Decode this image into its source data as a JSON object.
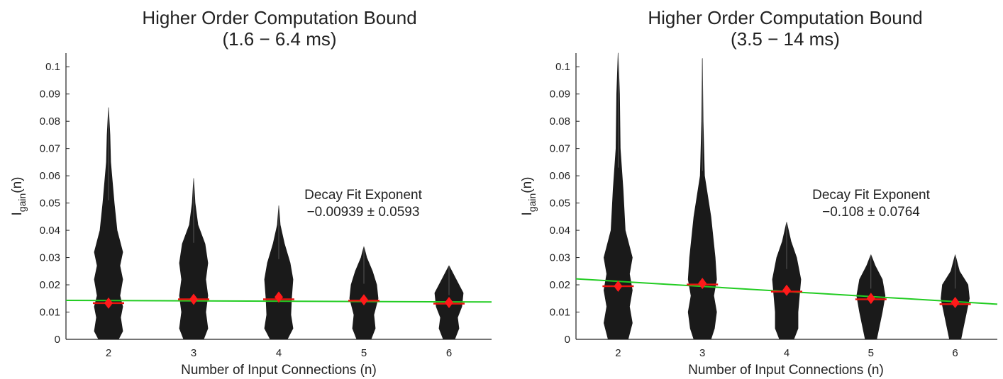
{
  "chart_data": [
    {
      "type": "violin",
      "title": [
        "Higher Order Computation Bound",
        "(1.6 − 6.4 ms)"
      ],
      "xlabel": "Number of Input Connections (n)",
      "ylabel": "I",
      "ylabel_sub": "gain",
      "ylabel_suffix": "(n)",
      "xlim": [
        1.5,
        6.5
      ],
      "ylim": [
        0,
        0.105
      ],
      "x_ticks": [
        "2",
        "3",
        "4",
        "5",
        "6"
      ],
      "y_ticks": [
        "0",
        "0.01",
        "0.02",
        "0.03",
        "0.04",
        "0.05",
        "0.06",
        "0.07",
        "0.08",
        "0.09",
        "0.1"
      ],
      "annotation": [
        "Decay Fit Exponent",
        "−0.00939 ± 0.0593"
      ],
      "fit_line": {
        "color": "#22cc22",
        "points": [
          [
            1.5,
            0.0143
          ],
          [
            6.5,
            0.0137
          ]
        ]
      },
      "violins": [
        {
          "x": 2,
          "max": 0.085,
          "mean": 0.0133,
          "median": 0.0133,
          "profile": [
            [
              0,
              0.085
            ],
            [
              0.1,
              0.075
            ],
            [
              0.15,
              0.065
            ],
            [
              0.4,
              0.05
            ],
            [
              0.6,
              0.04
            ],
            [
              1.0,
              0.032
            ],
            [
              0.8,
              0.027
            ],
            [
              1.0,
              0.022
            ],
            [
              0.8,
              0.016
            ],
            [
              1.0,
              0.012
            ],
            [
              0.85,
              0.008
            ],
            [
              1.0,
              0.003
            ],
            [
              0.7,
              0
            ]
          ]
        },
        {
          "x": 3,
          "max": 0.059,
          "mean": 0.0147,
          "median": 0.0147,
          "profile": [
            [
              0,
              0.059
            ],
            [
              0.1,
              0.05
            ],
            [
              0.3,
              0.042
            ],
            [
              0.8,
              0.035
            ],
            [
              1.0,
              0.028
            ],
            [
              0.85,
              0.022
            ],
            [
              1.0,
              0.016
            ],
            [
              0.85,
              0.01
            ],
            [
              1.0,
              0.004
            ],
            [
              0.7,
              0
            ]
          ]
        },
        {
          "x": 4,
          "max": 0.049,
          "mean": 0.0155,
          "median": 0.0147,
          "profile": [
            [
              0,
              0.049
            ],
            [
              0.1,
              0.042
            ],
            [
              0.4,
              0.035
            ],
            [
              0.8,
              0.028
            ],
            [
              1.0,
              0.022
            ],
            [
              0.9,
              0.015
            ],
            [
              0.85,
              0.009
            ],
            [
              1.0,
              0.004
            ],
            [
              0.6,
              0
            ]
          ]
        },
        {
          "x": 5,
          "max": 0.034,
          "mean": 0.0145,
          "median": 0.0142,
          "profile": [
            [
              0,
              0.034
            ],
            [
              0.2,
              0.03
            ],
            [
              0.6,
              0.025
            ],
            [
              0.9,
              0.02
            ],
            [
              1.0,
              0.015
            ],
            [
              0.7,
              0.009
            ],
            [
              0.8,
              0.004
            ],
            [
              0.5,
              0
            ]
          ]
        },
        {
          "x": 6,
          "max": 0.027,
          "mean": 0.0135,
          "median": 0.0131,
          "profile": [
            [
              0,
              0.027
            ],
            [
              0.4,
              0.023
            ],
            [
              1.0,
              0.017
            ],
            [
              0.9,
              0.012
            ],
            [
              0.6,
              0.008
            ],
            [
              0.7,
              0.004
            ],
            [
              0.4,
              0
            ]
          ]
        }
      ]
    },
    {
      "type": "violin",
      "title": [
        "Higher Order Computation Bound",
        "(3.5 − 14 ms)"
      ],
      "xlabel": "Number of Input Connections (n)",
      "ylabel": "I",
      "ylabel_sub": "gain",
      "ylabel_suffix": "(n)",
      "xlim": [
        1.5,
        6.5
      ],
      "ylim": [
        0,
        0.105
      ],
      "x_ticks": [
        "2",
        "3",
        "4",
        "5",
        "6"
      ],
      "y_ticks": [
        "0",
        "0.01",
        "0.02",
        "0.03",
        "0.04",
        "0.05",
        "0.06",
        "0.07",
        "0.08",
        "0.09",
        "0.1"
      ],
      "annotation": [
        "Decay Fit Exponent",
        "−0.108 ± 0.0764"
      ],
      "fit_line": {
        "color": "#22cc22",
        "points": [
          [
            1.5,
            0.0222
          ],
          [
            6.5,
            0.0129
          ]
        ]
      },
      "violins": [
        {
          "x": 2,
          "max": 0.105,
          "mean": 0.0195,
          "median": 0.0195,
          "profile": [
            [
              0,
              0.105
            ],
            [
              0.1,
              0.09
            ],
            [
              0.15,
              0.07
            ],
            [
              0.35,
              0.055
            ],
            [
              0.5,
              0.04
            ],
            [
              1.0,
              0.03
            ],
            [
              0.8,
              0.024
            ],
            [
              1.0,
              0.018
            ],
            [
              0.8,
              0.012
            ],
            [
              1.0,
              0.006
            ],
            [
              0.7,
              0
            ]
          ]
        },
        {
          "x": 3,
          "max": 0.103,
          "mean": 0.0205,
          "median": 0.0201,
          "profile": [
            [
              0,
              0.103
            ],
            [
              0.05,
              0.08
            ],
            [
              0.15,
              0.06
            ],
            [
              0.6,
              0.045
            ],
            [
              0.9,
              0.03
            ],
            [
              1.0,
              0.022
            ],
            [
              0.8,
              0.016
            ],
            [
              1.0,
              0.01
            ],
            [
              0.85,
              0.004
            ],
            [
              0.6,
              0
            ]
          ]
        },
        {
          "x": 4,
          "max": 0.043,
          "mean": 0.018,
          "median": 0.0175,
          "profile": [
            [
              0,
              0.043
            ],
            [
              0.3,
              0.036
            ],
            [
              0.7,
              0.03
            ],
            [
              1.0,
              0.022
            ],
            [
              0.9,
              0.016
            ],
            [
              0.8,
              0.01
            ],
            [
              0.8,
              0.004
            ],
            [
              0.5,
              0
            ]
          ]
        },
        {
          "x": 5,
          "max": 0.031,
          "mean": 0.015,
          "median": 0.0147,
          "profile": [
            [
              0,
              0.031
            ],
            [
              0.3,
              0.027
            ],
            [
              0.8,
              0.022
            ],
            [
              1.0,
              0.016
            ],
            [
              0.8,
              0.01
            ],
            [
              0.6,
              0.005
            ],
            [
              0.4,
              0
            ]
          ]
        },
        {
          "x": 6,
          "max": 0.031,
          "mean": 0.0135,
          "median": 0.0129,
          "profile": [
            [
              0,
              0.031
            ],
            [
              0.3,
              0.025
            ],
            [
              0.9,
              0.02
            ],
            [
              1.0,
              0.015
            ],
            [
              0.8,
              0.01
            ],
            [
              0.6,
              0.005
            ],
            [
              0.4,
              0
            ]
          ]
        }
      ]
    }
  ]
}
